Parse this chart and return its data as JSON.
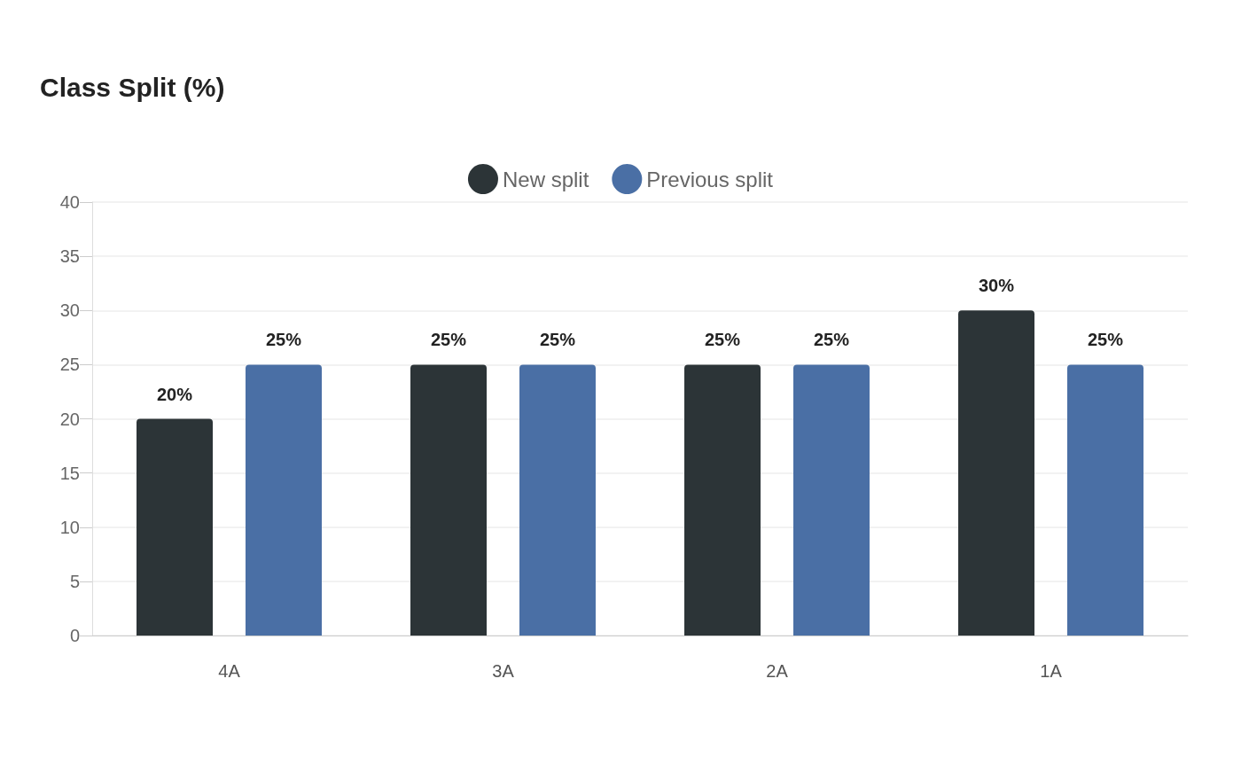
{
  "chart_data": {
    "type": "bar",
    "title": "Class Split (%)",
    "categories": [
      "4A",
      "3A",
      "2A",
      "1A"
    ],
    "series": [
      {
        "name": "New split",
        "color": "#2c3437",
        "values": [
          20,
          25,
          25,
          30
        ],
        "value_labels": [
          "20%",
          "25%",
          "25%",
          "30%"
        ]
      },
      {
        "name": "Previous split",
        "color": "#4a6fa5",
        "values": [
          25,
          25,
          25,
          25
        ],
        "value_labels": [
          "25%",
          "25%",
          "25%",
          "25%"
        ]
      }
    ],
    "ylim": [
      0,
      40
    ],
    "yticks": [
      0,
      5,
      10,
      15,
      20,
      25,
      30,
      35,
      40
    ],
    "grid": "y",
    "legend": "top"
  }
}
